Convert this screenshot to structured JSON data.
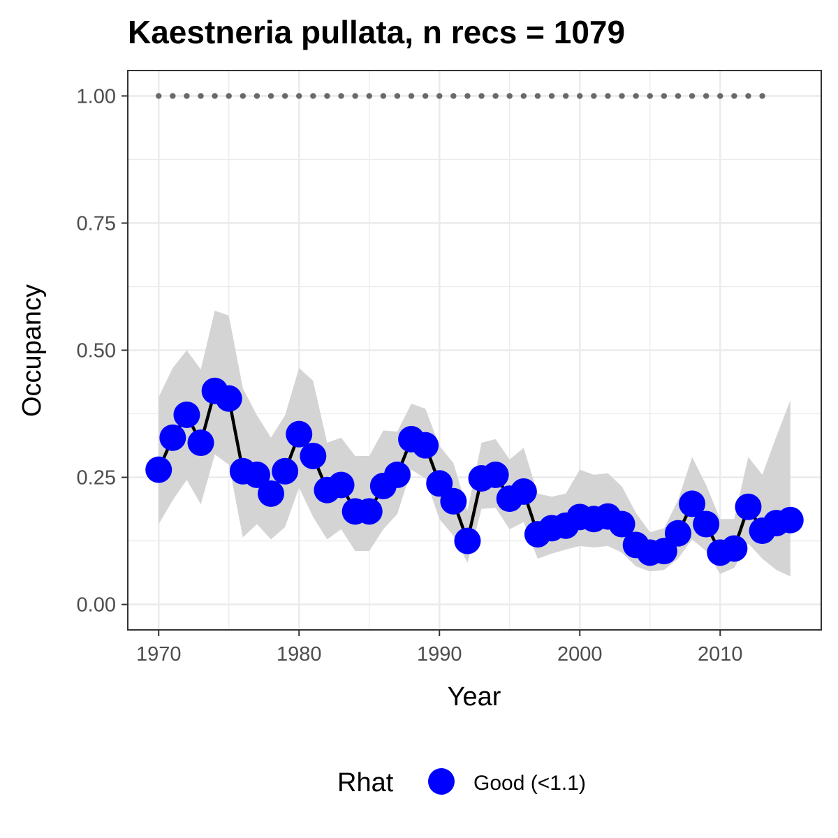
{
  "chart_data": {
    "type": "line",
    "title": "Kaestneria pullata, n recs = 1079",
    "xlabel": "Year",
    "ylabel": "Occupancy",
    "xlim": [
      1967.8,
      2017.2
    ],
    "ylim": [
      -0.05,
      1.05
    ],
    "x_ticks": [
      1970,
      1980,
      1990,
      2000,
      2010
    ],
    "x_tick_labels": [
      "1970",
      "1980",
      "1990",
      "2000",
      "2010"
    ],
    "y_ticks": [
      0,
      0.25,
      0.5,
      0.75,
      1.0
    ],
    "y_tick_labels": [
      "0.00",
      "0.25",
      "0.50",
      "0.75",
      "1.00"
    ],
    "grid": true,
    "colors": {
      "point": "#0000ff",
      "line": "#000000",
      "ribbon": "#d4d4d4",
      "grid": "#ebebeb",
      "rug": "#696969",
      "panel_border": "#333333"
    },
    "series": [
      {
        "x": [
          1970,
          1971,
          1972,
          1973,
          1974,
          1975,
          1976,
          1977,
          1978,
          1979,
          1980,
          1981,
          1982,
          1983,
          1984,
          1985,
          1986,
          1987,
          1988,
          1989,
          1990,
          1991,
          1992,
          1993,
          1994,
          1995,
          1996,
          1997,
          1998,
          1999,
          2000,
          2001,
          2002,
          2003,
          2004,
          2005,
          2006,
          2007,
          2008,
          2009,
          2010,
          2011,
          2012,
          2013,
          2014,
          2015
        ],
        "y": [
          0.265,
          0.328,
          0.373,
          0.318,
          0.42,
          0.405,
          0.262,
          0.255,
          0.218,
          0.262,
          0.335,
          0.292,
          0.225,
          0.235,
          0.183,
          0.183,
          0.233,
          0.255,
          0.325,
          0.313,
          0.238,
          0.203,
          0.125,
          0.248,
          0.255,
          0.208,
          0.222,
          0.138,
          0.15,
          0.155,
          0.172,
          0.168,
          0.173,
          0.158,
          0.117,
          0.102,
          0.105,
          0.14,
          0.198,
          0.158,
          0.102,
          0.11,
          0.192,
          0.145,
          0.16,
          0.166
        ],
        "lower": [
          0.158,
          0.205,
          0.245,
          0.197,
          0.295,
          0.275,
          0.132,
          0.158,
          0.128,
          0.152,
          0.23,
          0.172,
          0.128,
          0.148,
          0.105,
          0.105,
          0.148,
          0.178,
          0.265,
          0.248,
          0.168,
          0.135,
          0.082,
          0.188,
          0.19,
          0.148,
          0.162,
          0.09,
          0.1,
          0.108,
          0.115,
          0.112,
          0.115,
          0.102,
          0.075,
          0.065,
          0.068,
          0.09,
          0.128,
          0.105,
          0.06,
          0.072,
          0.12,
          0.09,
          0.068,
          0.055
        ],
        "upper": [
          0.408,
          0.465,
          0.5,
          0.462,
          0.578,
          0.568,
          0.425,
          0.372,
          0.328,
          0.372,
          0.465,
          0.44,
          0.318,
          0.328,
          0.292,
          0.292,
          0.342,
          0.34,
          0.395,
          0.385,
          0.312,
          0.278,
          0.185,
          0.318,
          0.325,
          0.285,
          0.308,
          0.218,
          0.212,
          0.218,
          0.265,
          0.255,
          0.258,
          0.232,
          0.18,
          0.142,
          0.15,
          0.205,
          0.29,
          0.235,
          0.168,
          0.168,
          0.29,
          0.255,
          0.33,
          0.402
        ]
      }
    ],
    "rug": {
      "y": 1.0,
      "x": [
        1970,
        1971,
        1972,
        1973,
        1974,
        1975,
        1976,
        1977,
        1978,
        1979,
        1980,
        1981,
        1982,
        1983,
        1984,
        1985,
        1986,
        1987,
        1988,
        1989,
        1990,
        1991,
        1992,
        1993,
        1994,
        1995,
        1996,
        1997,
        1998,
        1999,
        2000,
        2001,
        2002,
        2003,
        2004,
        2005,
        2006,
        2007,
        2008,
        2009,
        2010,
        2011,
        2012,
        2013
      ]
    },
    "legend": {
      "title": "Rhat",
      "position": "bottom",
      "items": [
        {
          "label": "Good (<1.1)",
          "color": "#0000ff"
        }
      ]
    }
  }
}
